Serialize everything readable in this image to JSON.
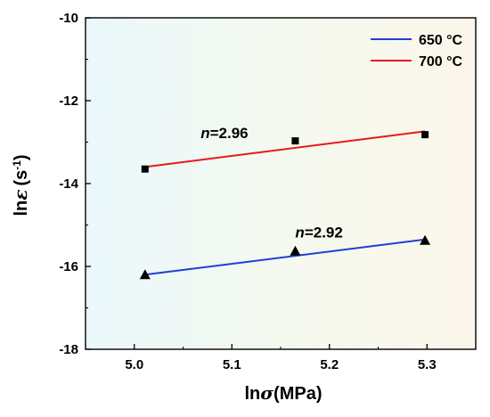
{
  "chart_data": {
    "type": "scatter",
    "xlabel_prefix": "ln",
    "xlabel_symbol": "σ",
    "xlabel_unit": "(MPa)",
    "ylabel_prefix": "ln",
    "ylabel_symbol": "ε",
    "ylabel_unit_base": "(s",
    "ylabel_unit_exp": "-1",
    "ylabel_unit_close": ")",
    "xlim": [
      4.95,
      5.35
    ],
    "ylim": [
      -18,
      -10
    ],
    "xticks": [
      "5.0",
      "5.1",
      "5.2",
      "5.3"
    ],
    "xtick_values": [
      5.0,
      5.1,
      5.2,
      5.3
    ],
    "yticks": [
      "-18",
      "-16",
      "-14",
      "-12",
      "-10"
    ],
    "ytick_values": [
      -18,
      -16,
      -14,
      -12,
      -10
    ],
    "grid": false,
    "legend_position": "top-right",
    "series": [
      {
        "name": "650 °C",
        "color": "#1f3fd6",
        "marker": "triangle",
        "points": [
          [
            5.011,
            -16.2
          ],
          [
            5.165,
            -15.63
          ],
          [
            5.298,
            -15.37
          ]
        ],
        "fit": [
          [
            5.011,
            -16.2
          ],
          [
            5.298,
            -15.35
          ]
        ],
        "annotation_var": "n",
        "annotation_value": "=2.92",
        "annotation_at": [
          5.165,
          -15.3
        ]
      },
      {
        "name": "700 °C",
        "color": "#e31b1b",
        "marker": "square",
        "points": [
          [
            5.011,
            -13.65
          ],
          [
            5.165,
            -12.97
          ],
          [
            5.298,
            -12.82
          ]
        ],
        "fit": [
          [
            5.011,
            -13.6
          ],
          [
            5.298,
            -12.74
          ]
        ],
        "annotation_var": "n",
        "annotation_value": "=2.96",
        "annotation_at": [
          5.068,
          -12.9
        ]
      }
    ]
  }
}
